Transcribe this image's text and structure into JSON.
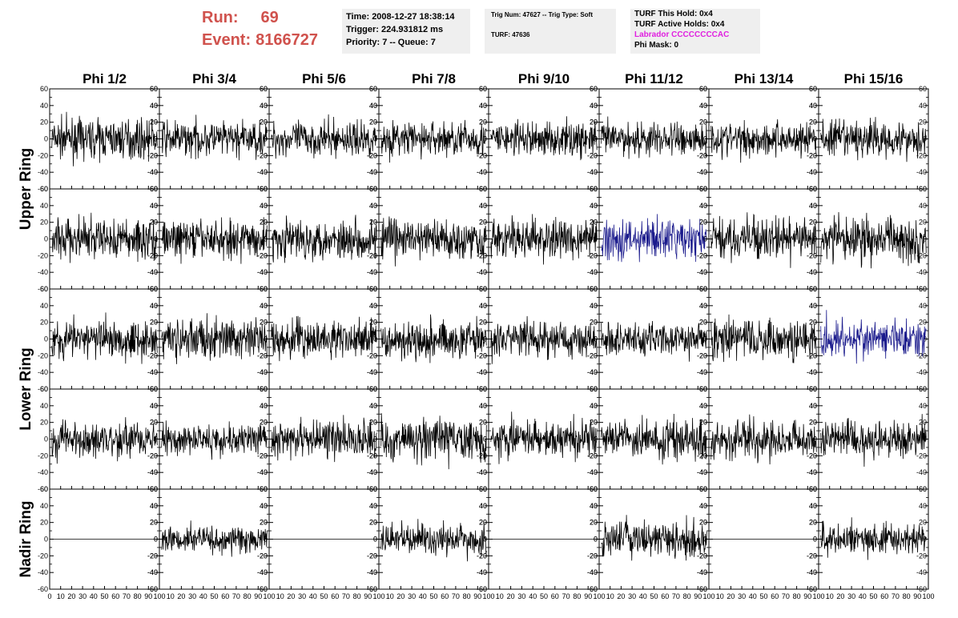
{
  "header": {
    "run_label": "Run:",
    "run_value": "69",
    "event_label": "Event:",
    "event_value": "8166727",
    "time_text": "Time: 2008-12-27 18:38:14",
    "trigger_text": "Trigger: 224.931812 ms",
    "priority_text": "Priority: 7 -- Queue: 7",
    "trig_num_text": "Trig Num: 47627 -- Trig Type: Soft",
    "turf_text": "TURF: 47636",
    "turf_this_hold": "TURF This Hold: 0x4",
    "turf_active_holds": "TURF Active Holds: 0x4",
    "labrador": "Labrador CCCCCCCCAC",
    "phi_mask": "Phi Mask: 0"
  },
  "colors": {
    "run_text": "#d0524d",
    "labrador_text": "#e020e0",
    "trace": "#000000",
    "highlight_trace": "#1a1a8c",
    "info_bg": "#efefef"
  },
  "chart_data": {
    "type": "line",
    "columns": [
      "Phi 1/2",
      "Phi 3/4",
      "Phi 5/6",
      "Phi 7/8",
      "Phi 9/10",
      "Phi 11/12",
      "Phi 13/14",
      "Phi 15/16"
    ],
    "ring_labels": [
      {
        "text": "Upper Ring",
        "rows": [
          0,
          1
        ]
      },
      {
        "text": "Lower Ring",
        "rows": [
          2,
          3
        ]
      },
      {
        "text": "Nadir Ring",
        "rows": [
          4
        ]
      }
    ],
    "ylim": [
      -60,
      60
    ],
    "yticks": [
      "60",
      "40",
      "20",
      "0",
      "-20",
      "-40",
      "-60"
    ],
    "xlim": [
      0,
      100
    ],
    "xticks": [
      "0",
      "10",
      "20",
      "30",
      "40",
      "50",
      "60",
      "70",
      "80",
      "90",
      "100"
    ],
    "grid": false,
    "series": [
      [
        {
          "amp": 15
        },
        {
          "amp": 14
        },
        {
          "amp": 14
        },
        {
          "amp": 14
        },
        {
          "amp": 14
        },
        {
          "amp": 14
        },
        {
          "amp": 14
        },
        {
          "amp": 15
        }
      ],
      [
        {
          "amp": 17
        },
        {
          "amp": 15
        },
        {
          "amp": 16
        },
        {
          "amp": 17
        },
        {
          "amp": 16
        },
        {
          "amp": 16,
          "highlight": true
        },
        {
          "amp": 16
        },
        {
          "amp": 18
        }
      ],
      [
        {
          "amp": 16
        },
        {
          "amp": 16
        },
        {
          "amp": 15
        },
        {
          "amp": 15
        },
        {
          "amp": 15
        },
        {
          "amp": 14
        },
        {
          "amp": 16
        },
        {
          "amp": 15,
          "highlight": true
        }
      ],
      [
        {
          "amp": 15
        },
        {
          "amp": 12
        },
        {
          "amp": 15
        },
        {
          "amp": 17
        },
        {
          "amp": 15
        },
        {
          "amp": 15
        },
        {
          "amp": 14
        },
        {
          "amp": 15
        }
      ],
      [
        {
          "amp": 0
        },
        {
          "amp": 11
        },
        {
          "amp": 0
        },
        {
          "amp": 13
        },
        {
          "amp": 0
        },
        {
          "amp": 15
        },
        {
          "amp": 0
        },
        {
          "amp": 12
        }
      ]
    ]
  }
}
